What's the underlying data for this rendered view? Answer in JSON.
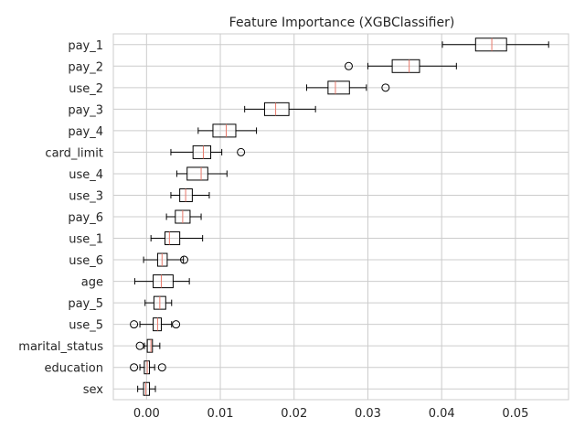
{
  "chart_data": {
    "type": "boxplot",
    "title": "Feature Importance (XGBClassifier)",
    "xlabel": "",
    "ylabel": "",
    "xlim": [
      -0.0045,
      0.0572
    ],
    "xticks": [
      0.0,
      0.01,
      0.02,
      0.03,
      0.04,
      0.05
    ],
    "xtick_labels": [
      "0.00",
      "0.01",
      "0.02",
      "0.03",
      "0.04",
      "0.05"
    ],
    "grid": true,
    "legend": "none",
    "colors": {
      "median": "#e8786a",
      "box": "#000000",
      "grid": "#cccccc",
      "text": "#262626"
    },
    "features": [
      {
        "name": "pay_1",
        "whislo": 0.0401,
        "q1": 0.0446,
        "med": 0.0468,
        "q3": 0.0488,
        "whishi": 0.0545,
        "fliers": []
      },
      {
        "name": "pay_2",
        "whislo": 0.03,
        "q1": 0.0333,
        "med": 0.0356,
        "q3": 0.037,
        "whishi": 0.042,
        "fliers": [
          0.0274
        ]
      },
      {
        "name": "use_2",
        "whislo": 0.0217,
        "q1": 0.0246,
        "med": 0.0256,
        "q3": 0.0275,
        "whishi": 0.0298,
        "fliers": [
          0.0324
        ]
      },
      {
        "name": "pay_3",
        "whislo": 0.0133,
        "q1": 0.016,
        "med": 0.0175,
        "q3": 0.0193,
        "whishi": 0.0229,
        "fliers": []
      },
      {
        "name": "pay_4",
        "whislo": 0.007,
        "q1": 0.009,
        "med": 0.0108,
        "q3": 0.0121,
        "whishi": 0.0149,
        "fliers": []
      },
      {
        "name": "card_limit",
        "whislo": 0.0033,
        "q1": 0.0063,
        "med": 0.0077,
        "q3": 0.0087,
        "whishi": 0.0102,
        "fliers": [
          0.0128
        ]
      },
      {
        "name": "use_4",
        "whislo": 0.0041,
        "q1": 0.0055,
        "med": 0.0074,
        "q3": 0.0083,
        "whishi": 0.0109,
        "fliers": []
      },
      {
        "name": "use_3",
        "whislo": 0.0033,
        "q1": 0.0045,
        "med": 0.0053,
        "q3": 0.0062,
        "whishi": 0.0085,
        "fliers": []
      },
      {
        "name": "pay_6",
        "whislo": 0.0027,
        "q1": 0.0039,
        "med": 0.0049,
        "q3": 0.0059,
        "whishi": 0.0074,
        "fliers": []
      },
      {
        "name": "use_1",
        "whislo": 0.0006,
        "q1": 0.0025,
        "med": 0.0031,
        "q3": 0.0045,
        "whishi": 0.0076,
        "fliers": []
      },
      {
        "name": "use_6",
        "whislo": -0.0004,
        "q1": 0.0015,
        "med": 0.0021,
        "q3": 0.0028,
        "whishi": 0.005,
        "fliers": [
          0.0051
        ]
      },
      {
        "name": "age",
        "whislo": -0.0016,
        "q1": 0.0009,
        "med": 0.002,
        "q3": 0.0036,
        "whishi": 0.0058,
        "fliers": []
      },
      {
        "name": "pay_5",
        "whislo": -0.0002,
        "q1": 0.001,
        "med": 0.0018,
        "q3": 0.0026,
        "whishi": 0.0034,
        "fliers": []
      },
      {
        "name": "use_5",
        "whislo": -0.0009,
        "q1": 0.0009,
        "med": 0.0015,
        "q3": 0.002,
        "whishi": 0.0034,
        "fliers": [
          -0.0017,
          0.004
        ]
      },
      {
        "name": "marital_status",
        "whislo": -0.0003,
        "q1": 0.0001,
        "med": 0.0006,
        "q3": 0.0008,
        "whishi": 0.0018,
        "fliers": [
          -0.0009
        ]
      },
      {
        "name": "education",
        "whislo": -0.0009,
        "q1": -0.0003,
        "med": 0.0001,
        "q3": 0.0004,
        "whishi": 0.0011,
        "fliers": [
          -0.0017,
          0.0021
        ]
      },
      {
        "name": "sex",
        "whislo": -0.0012,
        "q1": -0.0004,
        "med": -0.0001,
        "q3": 0.0004,
        "whishi": 0.0012,
        "fliers": []
      }
    ]
  }
}
